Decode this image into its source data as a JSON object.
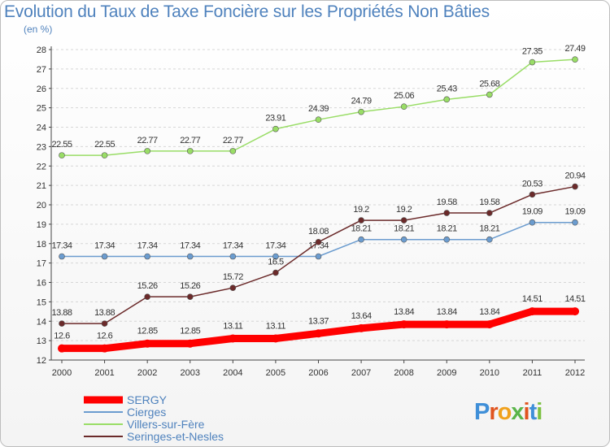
{
  "chart_data": {
    "type": "line",
    "title": "Evolution du Taux de Taxe Foncière sur les Propriétés Non Bâties",
    "subtitle": "(en %)",
    "x": [
      2000,
      2001,
      2002,
      2003,
      2004,
      2005,
      2006,
      2007,
      2008,
      2009,
      2010,
      2011,
      2012
    ],
    "ylim": [
      12,
      28
    ],
    "yticks": [
      12,
      13,
      14,
      15,
      16,
      17,
      18,
      19,
      20,
      21,
      22,
      23,
      24,
      25,
      26,
      27,
      28
    ],
    "grid": "horizontal dashed",
    "legend_placement": "bottom-left",
    "series": [
      {
        "name": "SERGY",
        "color": "#ff0000",
        "values": [
          12.6,
          12.6,
          12.85,
          12.85,
          13.11,
          13.11,
          13.37,
          13.64,
          13.84,
          13.84,
          13.84,
          14.51,
          14.51
        ]
      },
      {
        "name": "Cierges",
        "color": "#6b9ccf",
        "values": [
          17.34,
          17.34,
          17.34,
          17.34,
          17.34,
          17.34,
          17.34,
          18.21,
          18.21,
          18.21,
          18.21,
          19.09,
          19.09
        ]
      },
      {
        "name": "Villers-sur-Fère",
        "color": "#99dd66",
        "values": [
          22.55,
          22.55,
          22.77,
          22.77,
          22.77,
          23.91,
          24.39,
          24.79,
          25.06,
          25.43,
          25.68,
          27.35,
          27.49
        ]
      },
      {
        "name": "Seringes-et-Nesles",
        "color": "#6b2a2a",
        "values": [
          13.88,
          13.88,
          15.26,
          15.26,
          15.72,
          16.5,
          18.08,
          19.2,
          19.2,
          19.58,
          19.58,
          20.53,
          20.94
        ]
      }
    ]
  },
  "logo": {
    "letters": [
      "P",
      "r",
      "o",
      "x",
      "i",
      "t",
      "i"
    ],
    "colors": [
      "#3f8fd8",
      "#e0541f",
      "#f0a11c",
      "#5ab54a",
      "#e0541f",
      "#3f8fd8",
      "#7cc142"
    ]
  }
}
